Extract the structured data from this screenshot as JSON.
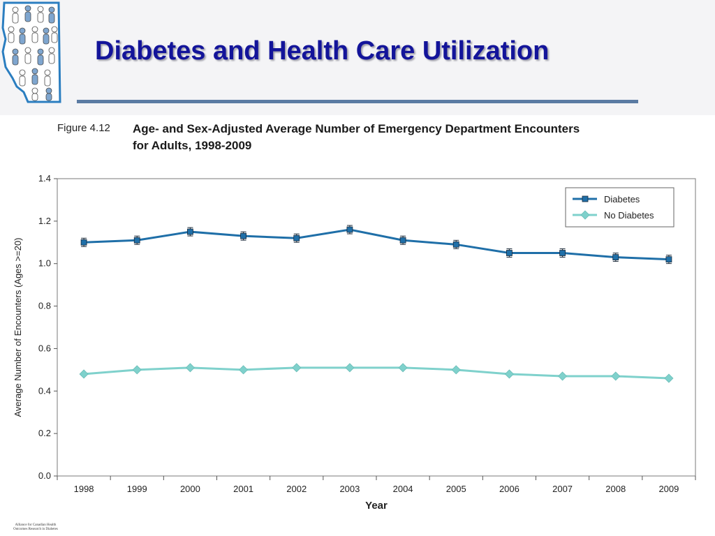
{
  "slide": {
    "title": "Diabetes and Health Care Utilization",
    "footer_org_line1": "Alliance for Canadian Health",
    "footer_org_line2": "Outcomes Research in Diabetes"
  },
  "figure": {
    "label": "Figure 4.12",
    "caption_line1": "Age- and Sex-Adjusted Average Number of Emergency Department Encounters",
    "caption_line2": "for Adults, 1998-2009"
  },
  "chart_data": {
    "type": "line",
    "title": "Age- and Sex-Adjusted Average Number of Emergency Department Encounters for Adults, 1998-2009",
    "xlabel": "Year",
    "ylabel": "Average Number of Encounters (Ages >=20)",
    "categories": [
      "1998",
      "1999",
      "2000",
      "2001",
      "2002",
      "2003",
      "2004",
      "2005",
      "2006",
      "2007",
      "2008",
      "2009"
    ],
    "ylim": [
      0,
      1.4
    ],
    "yticks": [
      "0.0",
      "0.2",
      "0.4",
      "0.6",
      "0.8",
      "1.0",
      "1.2",
      "1.4"
    ],
    "legend_position": "top-right",
    "grid": false,
    "series": [
      {
        "name": "Diabetes",
        "color": "#1f6fa8",
        "marker": "square",
        "values": [
          1.1,
          1.11,
          1.15,
          1.13,
          1.12,
          1.16,
          1.11,
          1.09,
          1.05,
          1.05,
          1.03,
          1.02
        ]
      },
      {
        "name": "No Diabetes",
        "color": "#7fd1cc",
        "marker": "diamond",
        "values": [
          0.48,
          0.5,
          0.51,
          0.5,
          0.51,
          0.51,
          0.51,
          0.5,
          0.48,
          0.47,
          0.47,
          0.46
        ]
      }
    ]
  }
}
